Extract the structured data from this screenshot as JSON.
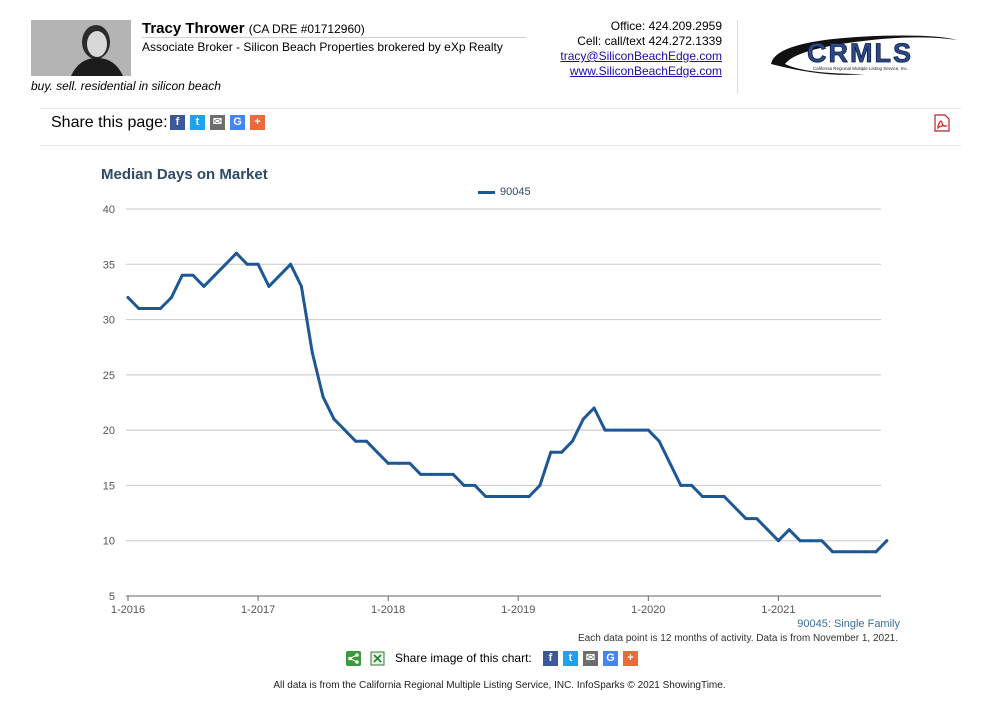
{
  "header": {
    "agent_name": "Tracy Thrower",
    "agent_license": "(CA DRE #01712960)",
    "agent_title": "Associate Broker - Silicon Beach Properties brokered by eXp Realty",
    "tagline": "buy. sell. residential in silicon beach",
    "office": "Office: 424.209.2959",
    "cell": "Cell: call/text 424.272.1339",
    "email": "tracy@SiliconBeachEdge.com",
    "website": "www.SiliconBeachEdge.com",
    "logo_text": "CRMLS",
    "logo_subtext": "California Regional Multiple Listing Service, Inc."
  },
  "share": {
    "label": "Share this page:",
    "buttons": [
      {
        "name": "facebook",
        "glyph": "f",
        "color": "#3b5998"
      },
      {
        "name": "twitter",
        "glyph": "t",
        "color": "#1da1f2"
      },
      {
        "name": "email",
        "glyph": "✉",
        "color": "#6d6d6d"
      },
      {
        "name": "google",
        "glyph": "G",
        "color": "#4285f4"
      },
      {
        "name": "more",
        "glyph": "+",
        "color": "#ea6a3a"
      }
    ]
  },
  "chart_data": {
    "type": "line",
    "title": "Median Days on Market",
    "ylim": [
      5,
      40
    ],
    "y_ticks": [
      5,
      10,
      15,
      20,
      25,
      30,
      35,
      40
    ],
    "x_tick_labels": [
      "1-2016",
      "1-2017",
      "1-2018",
      "1-2019",
      "1-2020",
      "1-2021"
    ],
    "grid": true,
    "legend_position": "top-center",
    "x": [
      "1-2016",
      "2-2016",
      "3-2016",
      "4-2016",
      "5-2016",
      "6-2016",
      "7-2016",
      "8-2016",
      "9-2016",
      "10-2016",
      "11-2016",
      "12-2016",
      "1-2017",
      "2-2017",
      "3-2017",
      "4-2017",
      "5-2017",
      "6-2017",
      "7-2017",
      "8-2017",
      "9-2017",
      "10-2017",
      "11-2017",
      "12-2017",
      "1-2018",
      "2-2018",
      "3-2018",
      "4-2018",
      "5-2018",
      "6-2018",
      "7-2018",
      "8-2018",
      "9-2018",
      "10-2018",
      "11-2018",
      "12-2018",
      "1-2019",
      "2-2019",
      "3-2019",
      "4-2019",
      "5-2019",
      "6-2019",
      "7-2019",
      "8-2019",
      "9-2019",
      "10-2019",
      "11-2019",
      "12-2019",
      "1-2020",
      "2-2020",
      "3-2020",
      "4-2020",
      "5-2020",
      "6-2020",
      "7-2020",
      "8-2020",
      "9-2020",
      "10-2020",
      "11-2020",
      "12-2020",
      "1-2021",
      "2-2021",
      "3-2021",
      "4-2021",
      "5-2021",
      "6-2021",
      "7-2021",
      "8-2021",
      "9-2021",
      "10-2021",
      "11-2021"
    ],
    "series": [
      {
        "name": "90045",
        "color": "#1e5796",
        "values": [
          32,
          31,
          31,
          31,
          32,
          34,
          34,
          33,
          34,
          35,
          36,
          35,
          35,
          33,
          34,
          35,
          33,
          27,
          23,
          21,
          20,
          19,
          19,
          18,
          17,
          17,
          17,
          16,
          16,
          16,
          16,
          15,
          15,
          14,
          14,
          14,
          14,
          14,
          15,
          18,
          18,
          19,
          21,
          22,
          20,
          20,
          20,
          20,
          20,
          19,
          17,
          15,
          15,
          14,
          14,
          14,
          13,
          12,
          12,
          11,
          10,
          11,
          10,
          10,
          10,
          9,
          9,
          9,
          9,
          9,
          10
        ]
      }
    ],
    "series_note": "90045: Single Family",
    "data_note": "Each data point is 12 months of activity. Data is from November 1, 2021."
  },
  "share_chart": {
    "label": "Share image of this chart:"
  },
  "footer": {
    "text": "All data is from the California Regional Multiple Listing Service, INC. InfoSparks © 2021 ShowingTime."
  }
}
